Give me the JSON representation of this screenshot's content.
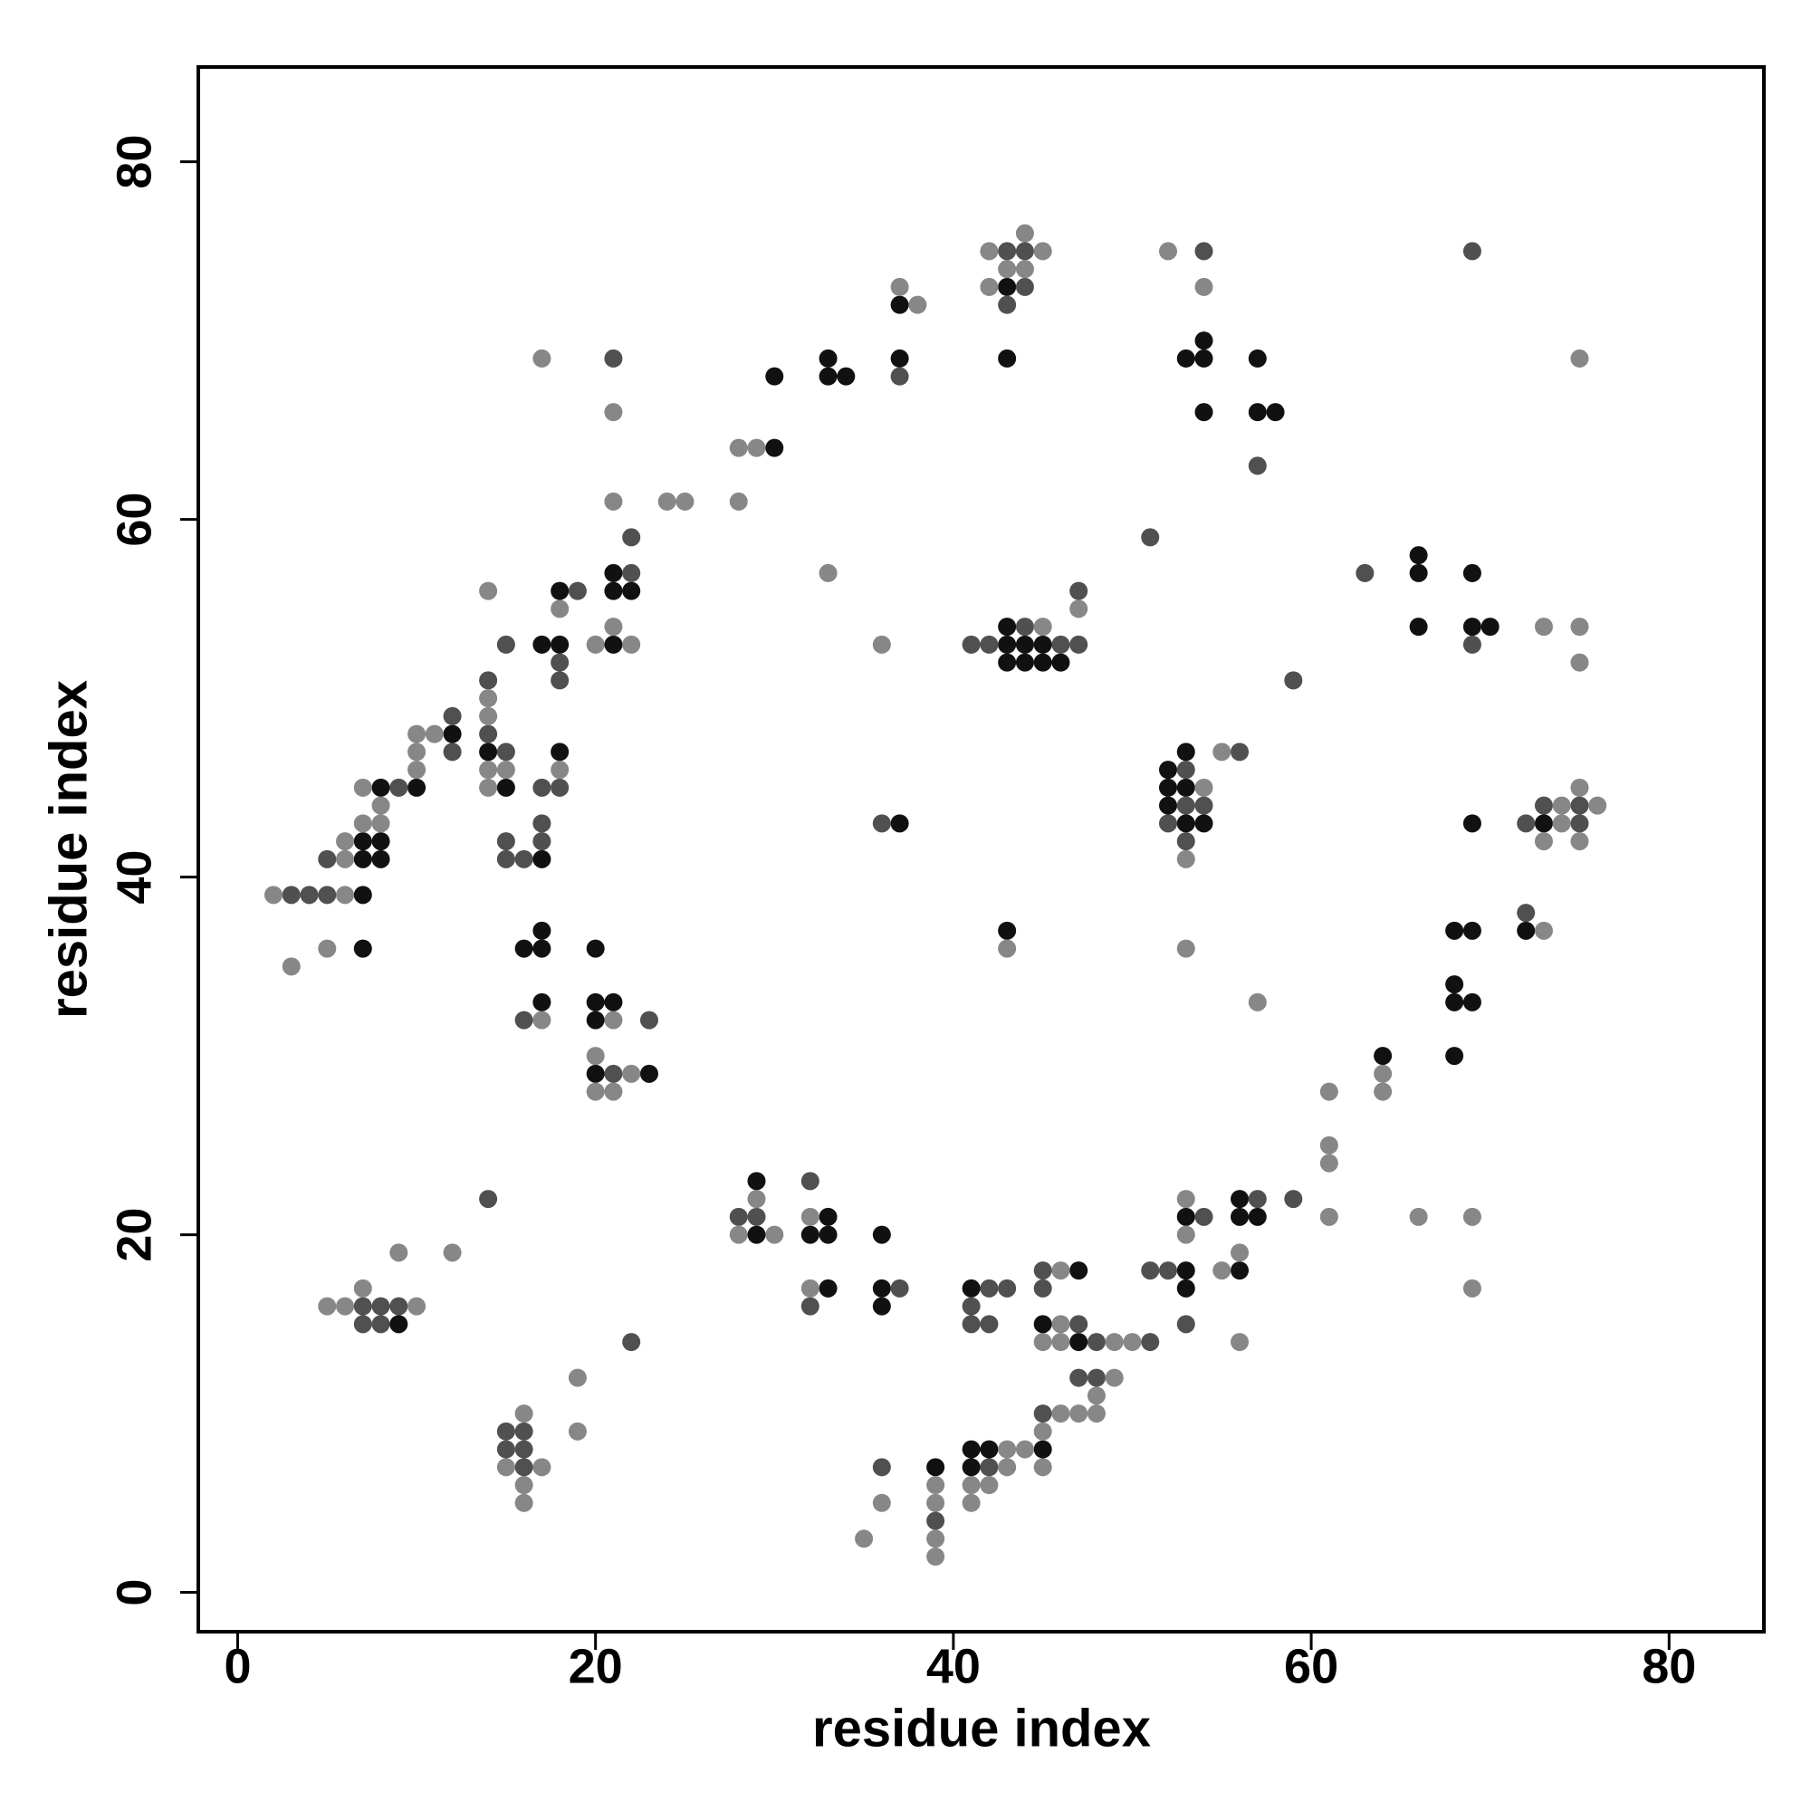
{
  "chart_data": {
    "type": "scatter",
    "xlabel": "residue index",
    "ylabel": "residue index",
    "xlim": [
      -2.2,
      85.3
    ],
    "ylim": [
      -2.2,
      85.3
    ],
    "xticks": [
      0,
      20,
      40,
      60,
      80
    ],
    "yticks": [
      0,
      20,
      40,
      60,
      80
    ],
    "grid": false,
    "series": [
      {
        "color": "#111111",
        "x": [
          43,
          37,
          33,
          37,
          43,
          53,
          54,
          57,
          54,
          30,
          33,
          34,
          54,
          57,
          58,
          30,
          66,
          21,
          66,
          69,
          18,
          21,
          22,
          43,
          66,
          69,
          70,
          17,
          18,
          21,
          43,
          44,
          45,
          43,
          44,
          45,
          46,
          12,
          14,
          18,
          53,
          52,
          8,
          10,
          15,
          52,
          53,
          52,
          37,
          53,
          54,
          69,
          73,
          7,
          8,
          7,
          8,
          17,
          7,
          17,
          43,
          68,
          69,
          72,
          7,
          16,
          17,
          20,
          68,
          17,
          20,
          21,
          68,
          69,
          20,
          64,
          68,
          20,
          23,
          29,
          56,
          33,
          53,
          56,
          57,
          29,
          32,
          33,
          36,
          47,
          53,
          56,
          33,
          36,
          41,
          53,
          36,
          9,
          45,
          47,
          41,
          42,
          45,
          39,
          41
        ],
        "y": [
          73,
          72,
          69,
          69,
          69,
          69,
          69,
          69,
          70,
          68,
          68,
          68,
          66,
          66,
          66,
          64,
          58,
          57,
          57,
          57,
          56,
          56,
          56,
          54,
          54,
          54,
          54,
          53,
          53,
          53,
          53,
          53,
          53,
          52,
          52,
          52,
          52,
          48,
          47,
          47,
          47,
          46,
          45,
          45,
          45,
          45,
          45,
          44,
          43,
          43,
          43,
          43,
          43,
          42,
          42,
          41,
          41,
          41,
          39,
          37,
          37,
          37,
          37,
          37,
          36,
          36,
          36,
          36,
          34,
          33,
          33,
          33,
          33,
          33,
          32,
          30,
          30,
          29,
          29,
          23,
          22,
          21,
          21,
          21,
          21,
          20,
          20,
          20,
          20,
          18,
          18,
          18,
          17,
          17,
          17,
          17,
          16,
          15,
          15,
          14,
          8,
          8,
          8,
          7,
          7
        ]
      },
      {
        "color": "#505050",
        "x": [
          43,
          44,
          54,
          69,
          44,
          43,
          21,
          37,
          57,
          22,
          51,
          22,
          63,
          19,
          47,
          44,
          15,
          41,
          42,
          46,
          47,
          69,
          18,
          14,
          18,
          59,
          12,
          14,
          12,
          15,
          56,
          53,
          9,
          17,
          18,
          53,
          54,
          73,
          75,
          17,
          36,
          52,
          72,
          75,
          15,
          17,
          53,
          5,
          15,
          16,
          3,
          4,
          5,
          72,
          16,
          23,
          21,
          32,
          14,
          57,
          59,
          28,
          29,
          54,
          45,
          51,
          52,
          37,
          42,
          43,
          45,
          7,
          8,
          9,
          32,
          41,
          7,
          8,
          41,
          42,
          47,
          53,
          22,
          48,
          51,
          47,
          48,
          45,
          15,
          16,
          15,
          16,
          16,
          36,
          42,
          39
        ],
        "y": [
          75,
          75,
          75,
          75,
          73,
          72,
          69,
          68,
          63,
          59,
          59,
          57,
          57,
          56,
          56,
          54,
          53,
          53,
          53,
          53,
          53,
          53,
          52,
          51,
          51,
          51,
          49,
          48,
          47,
          47,
          47,
          46,
          45,
          45,
          45,
          44,
          44,
          44,
          44,
          43,
          43,
          43,
          43,
          43,
          42,
          42,
          42,
          41,
          41,
          41,
          39,
          39,
          39,
          38,
          32,
          32,
          29,
          23,
          22,
          22,
          22,
          21,
          21,
          21,
          18,
          18,
          18,
          17,
          17,
          17,
          17,
          16,
          16,
          16,
          16,
          16,
          15,
          15,
          15,
          15,
          15,
          15,
          14,
          14,
          14,
          12,
          12,
          10,
          9,
          9,
          8,
          8,
          7,
          7,
          7,
          4
        ]
      },
      {
        "color": "#878787",
        "x": [
          44,
          42,
          45,
          52,
          43,
          44,
          37,
          42,
          54,
          38,
          17,
          75,
          21,
          28,
          29,
          21,
          24,
          25,
          28,
          33,
          14,
          18,
          47,
          21,
          45,
          73,
          75,
          20,
          22,
          36,
          75,
          14,
          14,
          10,
          11,
          10,
          55,
          10,
          14,
          15,
          18,
          7,
          14,
          54,
          75,
          8,
          74,
          76,
          7,
          8,
          74,
          6,
          73,
          75,
          6,
          53,
          2,
          6,
          73,
          5,
          43,
          53,
          3,
          57,
          17,
          21,
          20,
          22,
          64,
          20,
          21,
          61,
          64,
          61,
          61,
          29,
          53,
          32,
          61,
          66,
          69,
          28,
          30,
          53,
          9,
          12,
          56,
          46,
          55,
          7,
          32,
          69,
          5,
          6,
          10,
          46,
          45,
          46,
          49,
          50,
          56,
          19,
          49,
          48,
          16,
          46,
          47,
          48,
          19,
          45,
          43,
          44,
          15,
          17,
          43,
          45,
          16,
          39,
          41,
          42,
          16,
          36,
          39,
          41,
          35,
          39,
          39
        ],
        "y": [
          76,
          75,
          75,
          75,
          74,
          74,
          73,
          73,
          73,
          72,
          69,
          69,
          66,
          64,
          64,
          61,
          61,
          61,
          61,
          57,
          56,
          55,
          55,
          54,
          54,
          54,
          54,
          53,
          53,
          53,
          52,
          50,
          49,
          48,
          48,
          47,
          47,
          46,
          46,
          46,
          46,
          45,
          45,
          45,
          45,
          44,
          44,
          44,
          43,
          43,
          43,
          42,
          42,
          42,
          41,
          41,
          39,
          39,
          37,
          36,
          36,
          36,
          35,
          33,
          32,
          32,
          30,
          29,
          29,
          28,
          28,
          28,
          28,
          25,
          24,
          22,
          22,
          21,
          21,
          21,
          21,
          20,
          20,
          20,
          19,
          19,
          19,
          18,
          18,
          17,
          17,
          17,
          16,
          16,
          16,
          15,
          14,
          14,
          14,
          14,
          14,
          12,
          12,
          11,
          10,
          10,
          10,
          10,
          9,
          9,
          8,
          8,
          7,
          7,
          7,
          7,
          6,
          6,
          6,
          6,
          5,
          5,
          5,
          5,
          3,
          3,
          2
        ]
      }
    ]
  }
}
